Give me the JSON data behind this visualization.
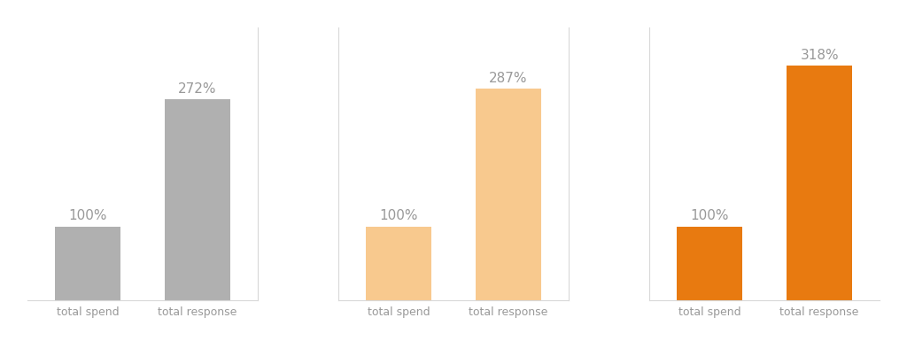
{
  "groups": [
    {
      "bars": [
        "total spend",
        "total response"
      ],
      "values": [
        100,
        272
      ],
      "labels": [
        "100%",
        "272%"
      ],
      "spend_color": "#b0b0b0",
      "response_color": "#b0b0b0"
    },
    {
      "bars": [
        "total spend",
        "total response"
      ],
      "values": [
        100,
        287
      ],
      "labels": [
        "100%",
        "287%"
      ],
      "spend_color": "#f8c98e",
      "response_color": "#f8c98e"
    },
    {
      "bars": [
        "total spend",
        "total response"
      ],
      "values": [
        100,
        318
      ],
      "labels": [
        "100%",
        "318%"
      ],
      "spend_color": "#e87a10",
      "response_color": "#e87a10"
    }
  ],
  "ylim": [
    0,
    370
  ],
  "bg_color": "#ffffff",
  "grid_color": "#d8d8d8",
  "text_color": "#999999",
  "label_fontsize": 11,
  "xtick_fontsize": 9,
  "bar_width": 0.6
}
